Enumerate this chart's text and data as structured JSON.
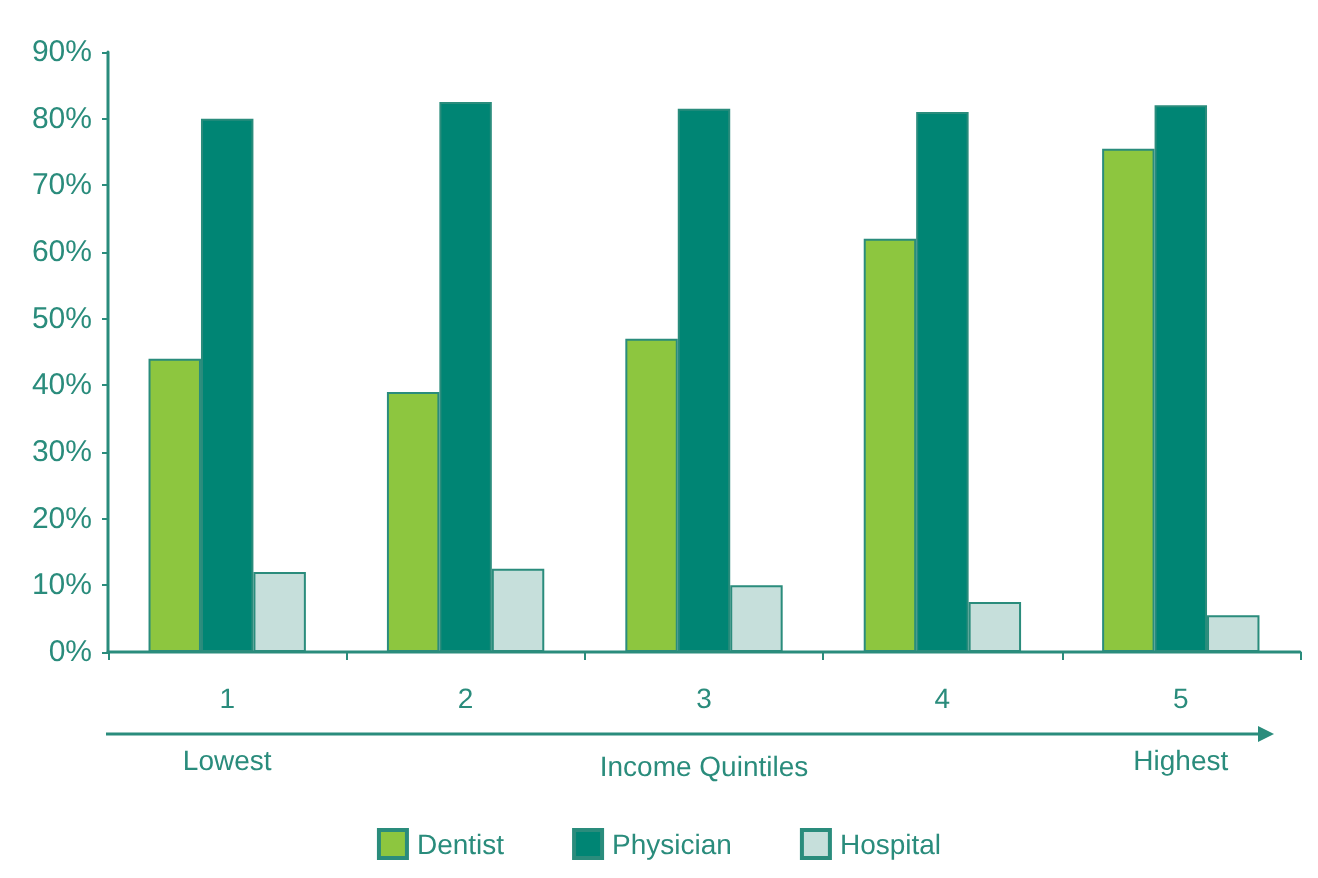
{
  "chart_data": {
    "type": "bar",
    "categories": [
      "1",
      "2",
      "3",
      "4",
      "5"
    ],
    "xlabel": "Income Quintiles",
    "series": [
      {
        "name": "Dentist",
        "color": "#8dc63f",
        "values": [
          44,
          39,
          47,
          62,
          75.5
        ]
      },
      {
        "name": "Physician",
        "color": "#008574",
        "values": [
          80,
          82.5,
          81.5,
          81,
          82
        ]
      },
      {
        "name": "Hospital",
        "color": "#c6dfdb",
        "values": [
          12,
          12.5,
          10,
          7.5,
          5.5
        ]
      }
    ],
    "ylim": [
      0,
      90
    ],
    "yticks": [
      {
        "value": 0,
        "label": "0%"
      },
      {
        "value": 10,
        "label": "10%"
      },
      {
        "value": 20,
        "label": "20%"
      },
      {
        "value": 30,
        "label": "30%"
      },
      {
        "value": 40,
        "label": "40%"
      },
      {
        "value": 50,
        "label": "50%"
      },
      {
        "value": 60,
        "label": "60%"
      },
      {
        "value": 70,
        "label": "70%"
      },
      {
        "value": 80,
        "label": "80%"
      },
      {
        "value": 90,
        "label": "90%"
      }
    ],
    "annotations": [
      "Lowest",
      "Highest"
    ],
    "grid": false,
    "legend": "bottom"
  }
}
